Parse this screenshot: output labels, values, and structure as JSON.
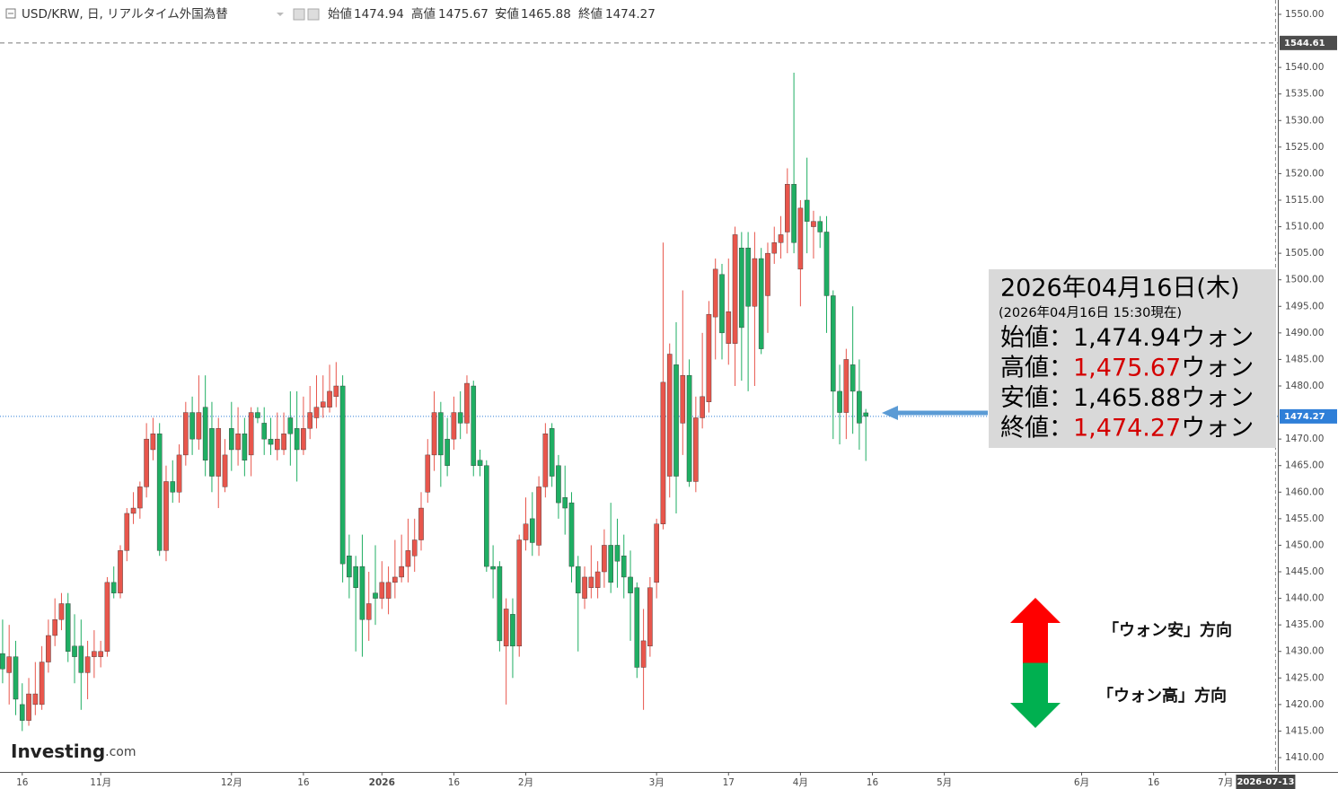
{
  "chart_data": {
    "type": "candlestick",
    "title": "USD/KRW, 日, リアルタイム外国為替",
    "ohlc_header": [
      {
        "label": "始値",
        "value": 1474.94
      },
      {
        "label": "高値",
        "value": 1475.67
      },
      {
        "label": "安値",
        "value": 1465.88
      },
      {
        "label": "終値",
        "value": 1474.27
      }
    ],
    "up_color": "#e8564c",
    "down_color": "#1fae63",
    "open": [
      1429.6,
      1426,
      1429,
      1420,
      1417,
      1420,
      1420,
      1428,
      1433,
      1436,
      1439,
      1431,
      1431,
      1426,
      1429,
      1429,
      1430,
      1443,
      1441,
      1449,
      1456,
      1457,
      1461,
      1468,
      1471,
      1449,
      1462,
      1460,
      1467,
      1475,
      1470,
      1476,
      1472,
      1463,
      1461,
      1472,
      1468,
      1471,
      1467,
      1475,
      1473,
      1470,
      1468,
      1468,
      1474,
      1472,
      1468,
      1472,
      1474,
      1476,
      1476,
      1478,
      1480,
      1448,
      1446,
      1446,
      1436,
      1441,
      1440,
      1440,
      1443,
      1444,
      1446,
      1448,
      1451,
      1460,
      1467,
      1475,
      1470,
      1470,
      1475,
      1473,
      1480,
      1466,
      1465,
      1446,
      1446,
      1431,
      1437,
      1431,
      1451,
      1455,
      1450,
      1461,
      1472,
      1465,
      1459,
      1458,
      1446,
      1440,
      1442,
      1442,
      1445,
      1450,
      1450,
      1448,
      1444,
      1442,
      1427,
      1431,
      1443,
      1454,
      1463,
      1484,
      1473,
      1482,
      1462,
      1474,
      1477,
      1493,
      1501,
      1488,
      1488,
      1506,
      1506,
      1495,
      1504,
      1497,
      1505,
      1507,
      1509,
      1518,
      1502,
      1515,
      1510,
      1511,
      1509,
      1497,
      1479,
      1475,
      1484,
      1479,
      1474.94
    ],
    "high": [
      1436,
      1435,
      1432,
      1424,
      1425,
      1428,
      1431,
      1436,
      1440,
      1441,
      1441,
      1437,
      1436,
      1432,
      1434,
      1432,
      1444,
      1446,
      1450,
      1457,
      1460,
      1462,
      1473,
      1474,
      1473,
      1465,
      1466,
      1469,
      1477,
      1478,
      1482,
      1482,
      1477,
      1474,
      1470,
      1477,
      1476,
      1474,
      1476,
      1476,
      1476,
      1474,
      1475,
      1475,
      1479,
      1479,
      1478,
      1480,
      1482,
      1482,
      1484,
      1484.5,
      1482,
      1452,
      1448,
      1452,
      1445,
      1450,
      1447,
      1446,
      1451,
      1452,
      1455,
      1455,
      1460,
      1470,
      1479,
      1477,
      1474,
      1478,
      1479,
      1482,
      1481,
      1468,
      1466,
      1450,
      1447,
      1440,
      1440,
      1452,
      1459,
      1460,
      1463,
      1473,
      1473,
      1467,
      1465,
      1460,
      1448,
      1446,
      1450,
      1447,
      1453,
      1458,
      1455,
      1452,
      1449,
      1443,
      1438,
      1444,
      1455,
      1507,
      1488,
      1492,
      1498,
      1485,
      1478,
      1490,
      1496,
      1504,
      1503,
      1504,
      1510,
      1509,
      1509,
      1509,
      1506,
      1507,
      1510,
      1512,
      1521,
      1539,
      1515,
      1523,
      1513,
      1512,
      1512,
      1498,
      1484,
      1487,
      1495,
      1485,
      1475.67
    ],
    "low": [
      1424,
      1420,
      1418,
      1415,
      1416,
      1418,
      1419,
      1426,
      1431,
      1434,
      1428,
      1424,
      1419,
      1421,
      1425,
      1427,
      1429,
      1440,
      1440,
      1447,
      1454,
      1455,
      1459,
      1466,
      1448,
      1447,
      1458,
      1458,
      1465,
      1467,
      1468,
      1463,
      1460,
      1457,
      1460,
      1464,
      1465,
      1463,
      1463,
      1473,
      1467,
      1467,
      1466,
      1467,
      1465,
      1462,
      1467,
      1470,
      1472,
      1474,
      1475,
      1476,
      1443,
      1440,
      1430,
      1429,
      1432,
      1435,
      1438,
      1437,
      1440,
      1443,
      1443,
      1445,
      1449,
      1458,
      1464,
      1461,
      1463,
      1468,
      1470,
      1471,
      1463,
      1463,
      1445,
      1440,
      1430,
      1420,
      1425,
      1429,
      1449,
      1448,
      1448,
      1459,
      1461,
      1455,
      1452,
      1443,
      1430,
      1438,
      1440,
      1440,
      1442,
      1441,
      1442,
      1440,
      1432,
      1425,
      1419,
      1429,
      1440,
      1453,
      1459,
      1456,
      1467,
      1461,
      1460,
      1472,
      1475,
      1485,
      1485,
      1484,
      1480,
      1481,
      1479,
      1480,
      1486,
      1490,
      1503,
      1504,
      1505,
      1505,
      1495,
      1505,
      1504,
      1506,
      1490,
      1470,
      1469,
      1470,
      1471,
      1468,
      1465.88
    ],
    "close": [
      1426.7,
      1429,
      1421,
      1417,
      1422,
      1422,
      1428,
      1433,
      1436,
      1439,
      1430,
      1429,
      1426,
      1429,
      1430,
      1430,
      1443,
      1441,
      1449,
      1456,
      1457,
      1461,
      1470,
      1471,
      1449,
      1462,
      1460,
      1467,
      1475,
      1470,
      1475,
      1466,
      1463,
      1472,
      1467,
      1468,
      1471,
      1466,
      1475,
      1474,
      1470,
      1469,
      1470,
      1471,
      1471,
      1468,
      1472,
      1475,
      1476,
      1477,
      1479,
      1480,
      1446.5,
      1444,
      1442,
      1436,
      1439,
      1440,
      1443,
      1443,
      1444,
      1446,
      1449,
      1451,
      1457,
      1467,
      1475,
      1467,
      1465,
      1475,
      1473,
      1480.5,
      1465,
      1465,
      1446,
      1445.5,
      1432,
      1438,
      1431,
      1451,
      1454,
      1450.5,
      1461,
      1471,
      1463,
      1458,
      1457,
      1446,
      1441,
      1444,
      1444,
      1445,
      1450,
      1443,
      1447,
      1444,
      1441,
      1427,
      1432,
      1442,
      1454,
      1480.7,
      1486,
      1463,
      1482,
      1462,
      1474,
      1478,
      1493.5,
      1502,
      1490,
      1494,
      1508.5,
      1491,
      1495,
      1504,
      1487,
      1505,
      1507,
      1508.5,
      1518,
      1507,
      1513.5,
      1511,
      1511,
      1509,
      1497,
      1479,
      1475,
      1485,
      1479,
      1473,
      1474.27
    ],
    "xlim": [
      -0.4,
      195
    ],
    "xticks": [
      {
        "value": 3,
        "label": "16"
      },
      {
        "value": 15,
        "label": "11月"
      },
      {
        "value": 35,
        "label": "12月"
      },
      {
        "value": 46,
        "label": "16"
      },
      {
        "value": 58,
        "label": "2026"
      },
      {
        "value": 69,
        "label": "16"
      },
      {
        "value": 80,
        "label": "2月"
      },
      {
        "value": 100,
        "label": "3月"
      },
      {
        "value": 111,
        "label": "17"
      },
      {
        "value": 122,
        "label": "4月"
      },
      {
        "value": 133,
        "label": "16"
      },
      {
        "value": 144,
        "label": "5月"
      },
      {
        "value": 165,
        "label": "6月"
      },
      {
        "value": 176,
        "label": "16"
      },
      {
        "value": 187,
        "label": "7月"
      }
    ],
    "cursor_date": {
      "value": 193,
      "label": "2026-07-13"
    },
    "ylim": [
      1407.3,
      1552.7
    ],
    "yticks": [
      {
        "value": 1410,
        "label": "1410.00"
      },
      {
        "value": 1415,
        "label": "1415.00"
      },
      {
        "value": 1420,
        "label": "1420.00"
      },
      {
        "value": 1425,
        "label": "1425.00"
      },
      {
        "value": 1430,
        "label": "1430.00"
      },
      {
        "value": 1435,
        "label": "1435.00"
      },
      {
        "value": 1440,
        "label": "1440.00"
      },
      {
        "value": 1445,
        "label": "1445.00"
      },
      {
        "value": 1450,
        "label": "1450.00"
      },
      {
        "value": 1455,
        "label": "1455.00"
      },
      {
        "value": 1460,
        "label": "1460.00"
      },
      {
        "value": 1465,
        "label": "1465.00"
      },
      {
        "value": 1470,
        "label": "1470.00"
      },
      {
        "value": 1480,
        "label": "1480.00"
      },
      {
        "value": 1485,
        "label": "1485.00"
      },
      {
        "value": 1490,
        "label": "1490.00"
      },
      {
        "value": 1495,
        "label": "1495.00"
      },
      {
        "value": 1500,
        "label": "1500.00"
      },
      {
        "value": 1505,
        "label": "1505.00"
      },
      {
        "value": 1510,
        "label": "1510.00"
      },
      {
        "value": 1515,
        "label": "1515.00"
      },
      {
        "value": 1520,
        "label": "1520.00"
      },
      {
        "value": 1525,
        "label": "1525.00"
      },
      {
        "value": 1530,
        "label": "1530.00"
      },
      {
        "value": 1535,
        "label": "1535.00"
      },
      {
        "value": 1540,
        "label": "1540.00"
      },
      {
        "value": 1550,
        "label": "1550.00"
      }
    ],
    "last_price": 1474.27,
    "last_price_color": "#2f7fd8",
    "reference_line": 1544.61,
    "grid": false,
    "info_box": {
      "title": "2026年04月16日(木)",
      "subtitle": "(2026年04月16日 15:30現在)",
      "separator": "：",
      "unit": "ウォン",
      "highlight_color": "#d40000",
      "rows": [
        {
          "label": "始値",
          "value": "1,474.94",
          "highlight": false
        },
        {
          "label": "高値",
          "value": "1,475.67",
          "highlight": true
        },
        {
          "label": "安値",
          "value": "1,465.88",
          "highlight": false
        },
        {
          "label": "終値",
          "value": "1,474.27",
          "highlight": true
        }
      ]
    },
    "direction_labels": [
      "「ウォン安」方向",
      "「ウォン高」方向"
    ],
    "brand": "Investing",
    "brand_suffix": ".com"
  }
}
